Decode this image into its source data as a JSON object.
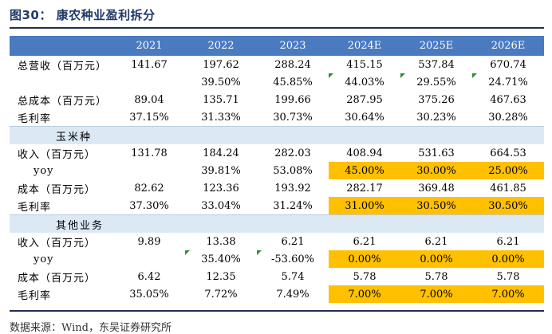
{
  "title": "图30：  康农种业盈利拆分",
  "source": "数据来源：Wind，东吴证券研究所",
  "colors": {
    "header_bg": "#4a7ac0",
    "section_bg": "#dce9f5",
    "highlight": "#ffc000",
    "title": "#1f3a6b"
  },
  "table": {
    "headers": [
      "",
      "2021",
      "2022",
      "2023",
      "2024E",
      "2025E",
      "2026E"
    ],
    "rows": [
      {
        "cells": [
          "总营收（百万元）",
          "141.67",
          "197.62",
          "288.24",
          "415.15",
          "537.84",
          "670.74"
        ]
      },
      {
        "cells": [
          "",
          "",
          "39.50%",
          "45.85%",
          "44.03%",
          "29.55%",
          "24.71%"
        ],
        "tri": [
          4,
          5,
          6
        ]
      },
      {
        "cells": [
          "总成本（百万元）",
          "89.04",
          "135.71",
          "199.66",
          "287.95",
          "375.26",
          "467.63"
        ]
      },
      {
        "cells": [
          "毛利率",
          "37.15%",
          "31.33%",
          "30.73%",
          "30.64%",
          "30.23%",
          "30.28%"
        ]
      },
      {
        "section": true,
        "cells": [
          "玉米种",
          "",
          "",
          "",
          "",
          "",
          ""
        ]
      },
      {
        "cells": [
          "收入（百万元）",
          "131.78",
          "184.24",
          "282.03",
          "408.94",
          "531.63",
          "664.53"
        ]
      },
      {
        "cells": [
          "yoy",
          "",
          "39.81%",
          "53.08%",
          "45.00%",
          "30.00%",
          "25.00%"
        ],
        "hl": true,
        "indent": true
      },
      {
        "cells": [
          "成本（百万元）",
          "82.62",
          "123.36",
          "193.92",
          "282.17",
          "369.48",
          "461.85"
        ]
      },
      {
        "cells": [
          "毛利率",
          "37.30%",
          "33.04%",
          "31.24%",
          "31.00%",
          "30.50%",
          "30.50%"
        ],
        "hl": true
      },
      {
        "section": true,
        "cells": [
          "其他业务",
          "",
          "",
          "",
          "",
          "",
          ""
        ]
      },
      {
        "cells": [
          "收入（百万元）",
          "9.89",
          "13.38",
          "6.21",
          "6.21",
          "6.21",
          "6.21"
        ]
      },
      {
        "cells": [
          "yoy",
          "",
          "35.40%",
          "-53.60%",
          "0.00%",
          "0.00%",
          "0.00%"
        ],
        "hl": true,
        "tri": [
          2,
          3
        ],
        "indent": true
      },
      {
        "cells": [
          "成本（百万元）",
          "6.42",
          "12.35",
          "5.74",
          "5.78",
          "5.78",
          "5.78"
        ]
      },
      {
        "cells": [
          "毛利率",
          "35.05%",
          "7.72%",
          "7.49%",
          "7.00%",
          "7.00%",
          "7.00%"
        ],
        "hl": true
      }
    ]
  }
}
